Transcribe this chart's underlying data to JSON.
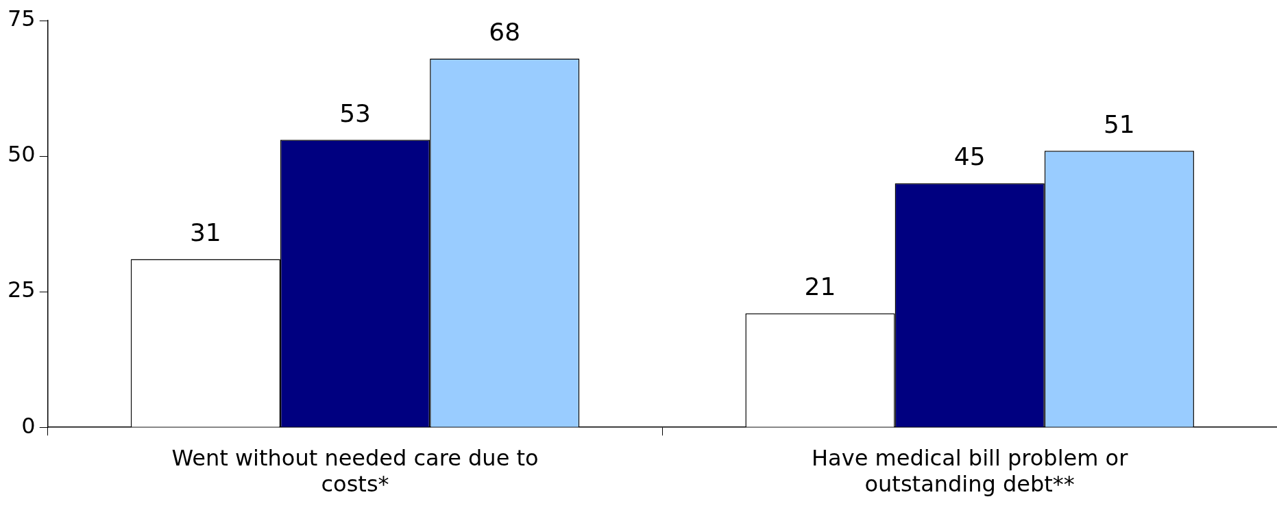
{
  "chart_data": {
    "type": "bar",
    "categories": [
      "Went without needed care due to costs*",
      "Have medical bill problem or outstanding debt**"
    ],
    "series": [
      {
        "color": "#ffffff",
        "values": [
          31,
          21
        ]
      },
      {
        "color": "#000080",
        "values": [
          53,
          45
        ]
      },
      {
        "color": "#99ccff",
        "values": [
          68,
          51
        ]
      }
    ],
    "ylim": [
      0,
      75
    ],
    "yticks": [
      0,
      25,
      50,
      75
    ],
    "grid": false,
    "legend": false,
    "data_labels": true
  }
}
